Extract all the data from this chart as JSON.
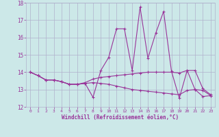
{
  "xlabel": "Windchill (Refroidissement éolien,°C)",
  "xlim": [
    -0.5,
    23.5
  ],
  "ylim": [
    12,
    18
  ],
  "yticks": [
    12,
    13,
    14,
    15,
    16,
    17,
    18
  ],
  "xticks": [
    0,
    1,
    2,
    3,
    4,
    5,
    6,
    7,
    8,
    9,
    10,
    11,
    12,
    13,
    14,
    15,
    16,
    17,
    18,
    19,
    20,
    21,
    22,
    23
  ],
  "bg_color": "#cce8e8",
  "grid_color": "#b0b0cc",
  "line_color": "#993399",
  "series": [
    [
      14.0,
      13.8,
      13.55,
      13.55,
      13.45,
      13.3,
      13.3,
      13.35,
      12.55,
      14.1,
      14.85,
      16.5,
      16.5,
      14.1,
      17.75,
      14.8,
      16.25,
      17.5,
      14.05,
      12.5,
      14.1,
      13.0,
      12.6,
      12.65
    ],
    [
      14.0,
      13.8,
      13.55,
      13.55,
      13.45,
      13.3,
      13.3,
      13.4,
      13.6,
      13.7,
      13.75,
      13.8,
      13.85,
      13.9,
      13.95,
      14.0,
      14.0,
      14.0,
      14.0,
      13.95,
      14.1,
      14.1,
      13.05,
      12.7
    ],
    [
      14.0,
      13.8,
      13.55,
      13.55,
      13.45,
      13.3,
      13.3,
      13.35,
      13.4,
      13.35,
      13.3,
      13.2,
      13.1,
      13.0,
      12.95,
      12.9,
      12.85,
      12.8,
      12.75,
      12.7,
      12.95,
      13.0,
      12.95,
      12.65
    ]
  ]
}
